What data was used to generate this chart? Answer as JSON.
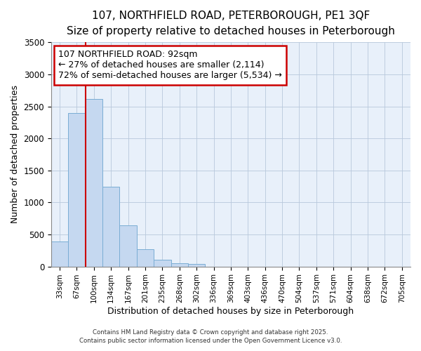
{
  "title1": "107, NORTHFIELD ROAD, PETERBOROUGH, PE1 3QF",
  "title2": "Size of property relative to detached houses in Peterborough",
  "xlabel": "Distribution of detached houses by size in Peterborough",
  "ylabel": "Number of detached properties",
  "categories": [
    "33sqm",
    "67sqm",
    "100sqm",
    "134sqm",
    "167sqm",
    "201sqm",
    "235sqm",
    "268sqm",
    "302sqm",
    "336sqm",
    "369sqm",
    "403sqm",
    "436sqm",
    "470sqm",
    "504sqm",
    "537sqm",
    "571sqm",
    "604sqm",
    "638sqm",
    "672sqm",
    "705sqm"
  ],
  "values": [
    390,
    2400,
    2620,
    1250,
    640,
    270,
    100,
    55,
    40,
    0,
    0,
    0,
    0,
    0,
    0,
    0,
    0,
    0,
    0,
    0,
    0
  ],
  "bar_color": "#c5d8f0",
  "bar_edgecolor": "#7aadd4",
  "vline_color": "#cc0000",
  "annotation_text": "107 NORTHFIELD ROAD: 92sqm\n← 27% of detached houses are smaller (2,114)\n72% of semi-detached houses are larger (5,534) →",
  "annotation_fontsize": 9,
  "ylim": [
    0,
    3500
  ],
  "yticks": [
    0,
    500,
    1000,
    1500,
    2000,
    2500,
    3000,
    3500
  ],
  "bg_color": "#dce8f5",
  "plot_bg_color": "#e8f0fa",
  "footer1": "Contains HM Land Registry data © Crown copyright and database right 2025.",
  "footer2": "Contains public sector information licensed under the Open Government Licence v3.0.",
  "title_fontsize": 11,
  "subtitle_fontsize": 9.5
}
